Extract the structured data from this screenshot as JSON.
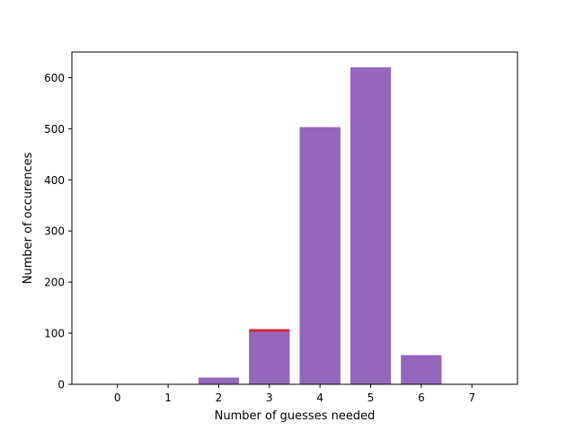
{
  "chart_data": {
    "type": "bar",
    "categories": [
      "0",
      "1",
      "2",
      "3",
      "4",
      "5",
      "6",
      "7"
    ],
    "x": [
      0,
      1,
      2,
      3,
      4,
      5,
      6,
      7
    ],
    "series": [
      {
        "color": "#d62728",
        "values": [
          0,
          0,
          13,
          108,
          503,
          620,
          57,
          0
        ]
      },
      {
        "color": "#9467bd",
        "values": [
          0,
          0,
          13,
          103,
          503,
          620,
          57,
          0
        ]
      }
    ],
    "xlabel": "Number of guesses needed",
    "ylabel": "Number of occurences",
    "xlim": [
      -0.9,
      7.9
    ],
    "ylim": [
      0,
      650
    ],
    "yticks": [
      0,
      100,
      200,
      300,
      400,
      500,
      600
    ],
    "grid": false,
    "legend": "none"
  }
}
